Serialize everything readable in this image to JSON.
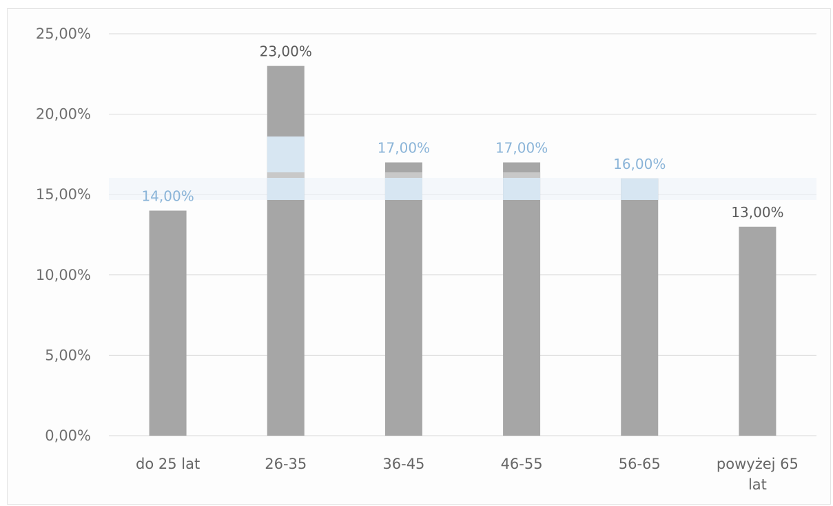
{
  "chart_data": {
    "type": "bar",
    "categories": [
      [
        "do 25 lat"
      ],
      [
        "26-35"
      ],
      [
        "36-45"
      ],
      [
        "46-55"
      ],
      [
        "56-65"
      ],
      [
        "powyżej 65",
        "lat"
      ]
    ],
    "values": [
      14,
      23,
      17,
      17,
      16,
      13
    ],
    "value_labels": [
      "14,00%",
      "23,00%",
      "17,00%",
      "17,00%",
      "16,00%",
      "13,00%"
    ],
    "y_ticks": [
      0,
      5,
      10,
      15,
      20,
      25
    ],
    "y_tick_labels": [
      "0,00%",
      "5,00%",
      "10,00%",
      "15,00%",
      "20,00%",
      "25,00%"
    ],
    "ylim": [
      0,
      25
    ],
    "grid": true,
    "legend": "none",
    "title": "",
    "xlabel": "",
    "ylabel": "",
    "colors": {
      "bar": "#a6a6a6",
      "grid": "#d9d9d9",
      "axis_text": "#6f6f6f",
      "data_label": "#5a5a5a",
      "data_label_light": "#8ab4d8",
      "highlight_band": "#d7e6f2"
    }
  }
}
